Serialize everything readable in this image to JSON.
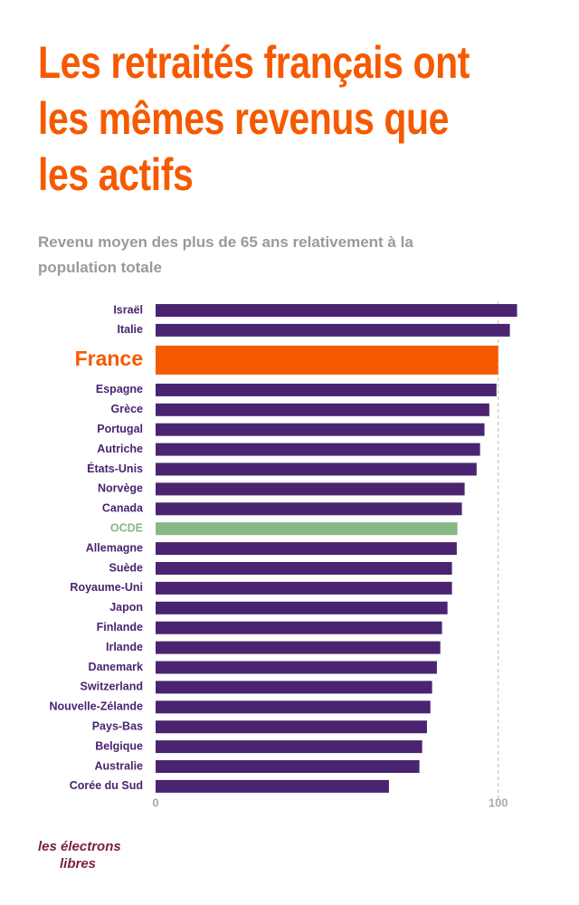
{
  "chart_data": {
    "type": "barh",
    "title": "Les retraités français ont les mêmes revenus que les actifs",
    "subtitle": "Revenu moyen des plus de 65 ans relativement à la population totale",
    "categories": [
      "Israël",
      "Italie",
      "France",
      "Espagne",
      "Grèce",
      "Portugal",
      "Autriche",
      "États-Unis",
      "Norvège",
      "Canada",
      "OCDE",
      "Allemagne",
      "Suède",
      "Royaume-Uni",
      "Japon",
      "Finlande",
      "Irlande",
      "Danemark",
      "Switzerland",
      "Nouvelle-Zélande",
      "Pays-Bas",
      "Belgique",
      "Australie",
      "Corée du Sud"
    ],
    "values": [
      105.5,
      103.4,
      100,
      99.5,
      97.4,
      96,
      94.7,
      93.7,
      90.2,
      89.4,
      88.1,
      87.9,
      86.5,
      86.5,
      85.2,
      83.6,
      83.1,
      82.1,
      80.7,
      80.2,
      79.2,
      77.8,
      77,
      68.1
    ],
    "colors": [
      "#4a2470",
      "#4a2470",
      "#f55a00",
      "#4a2470",
      "#4a2470",
      "#4a2470",
      "#4a2470",
      "#4a2470",
      "#4a2470",
      "#4a2470",
      "#86b886",
      "#4a2470",
      "#4a2470",
      "#4a2470",
      "#4a2470",
      "#4a2470",
      "#4a2470",
      "#4a2470",
      "#4a2470",
      "#4a2470",
      "#4a2470",
      "#4a2470",
      "#4a2470",
      "#4a2470"
    ],
    "highlight": "France",
    "xlim": [
      0,
      108
    ],
    "xticks": [
      0,
      100
    ],
    "grid": true,
    "logo": [
      "les électrons",
      "libres"
    ]
  }
}
